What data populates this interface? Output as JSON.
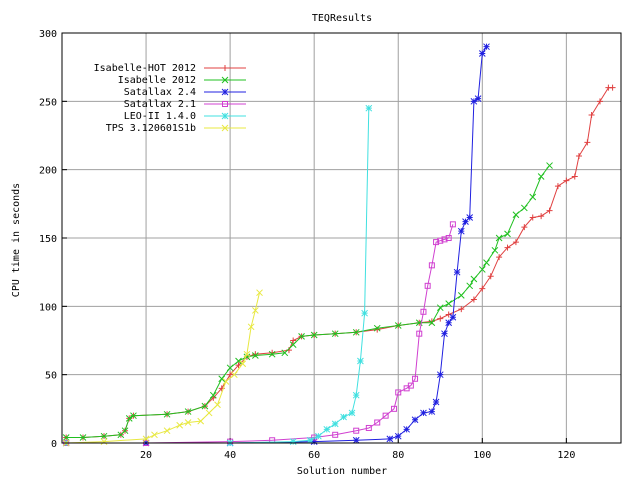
{
  "chart_data": {
    "type": "line",
    "title": "TEQResults",
    "xlabel": "Solution number",
    "ylabel": "CPU time in seconds",
    "xlim": [
      0,
      133
    ],
    "ylim": [
      0,
      300
    ],
    "xticks": [
      20,
      40,
      60,
      80,
      100,
      120
    ],
    "yticks": [
      0,
      50,
      100,
      150,
      200,
      250,
      300
    ],
    "grid": true,
    "legend_position": "top-left",
    "series": [
      {
        "name": "Isabelle-HOT 2012",
        "color": "#e04040",
        "marker": "plus",
        "points": [
          [
            1,
            4
          ],
          [
            5,
            4
          ],
          [
            10,
            5
          ],
          [
            14,
            6
          ],
          [
            15,
            9
          ],
          [
            16,
            18
          ],
          [
            17,
            20
          ],
          [
            25,
            21
          ],
          [
            30,
            23
          ],
          [
            34,
            27
          ],
          [
            36,
            33
          ],
          [
            38,
            40
          ],
          [
            40,
            50
          ],
          [
            42,
            57
          ],
          [
            44,
            63
          ],
          [
            46,
            65
          ],
          [
            50,
            66
          ],
          [
            54,
            68
          ],
          [
            55,
            75
          ],
          [
            57,
            78
          ],
          [
            60,
            79
          ],
          [
            65,
            80
          ],
          [
            70,
            81
          ],
          [
            75,
            83
          ],
          [
            80,
            86
          ],
          [
            85,
            88
          ],
          [
            88,
            89
          ],
          [
            90,
            91
          ],
          [
            92,
            94
          ],
          [
            95,
            98
          ],
          [
            98,
            105
          ],
          [
            100,
            113
          ],
          [
            102,
            122
          ],
          [
            104,
            136
          ],
          [
            106,
            143
          ],
          [
            108,
            147
          ],
          [
            110,
            158
          ],
          [
            112,
            165
          ],
          [
            114,
            166
          ],
          [
            116,
            170
          ],
          [
            118,
            188
          ],
          [
            120,
            192
          ],
          [
            122,
            195
          ],
          [
            123,
            210
          ],
          [
            125,
            220
          ],
          [
            126,
            240
          ],
          [
            128,
            250
          ],
          [
            130,
            260
          ],
          [
            131,
            260
          ]
        ]
      },
      {
        "name": "Isabelle 2012",
        "color": "#20c020",
        "marker": "cross",
        "points": [
          [
            1,
            4
          ],
          [
            5,
            4
          ],
          [
            10,
            5
          ],
          [
            14,
            6
          ],
          [
            15,
            9
          ],
          [
            16,
            18
          ],
          [
            17,
            20
          ],
          [
            25,
            21
          ],
          [
            30,
            23
          ],
          [
            34,
            27
          ],
          [
            36,
            35
          ],
          [
            38,
            47
          ],
          [
            40,
            55
          ],
          [
            42,
            60
          ],
          [
            44,
            63
          ],
          [
            46,
            64
          ],
          [
            50,
            65
          ],
          [
            53,
            66
          ],
          [
            55,
            72
          ],
          [
            57,
            78
          ],
          [
            60,
            79
          ],
          [
            65,
            80
          ],
          [
            70,
            81
          ],
          [
            75,
            84
          ],
          [
            80,
            86
          ],
          [
            85,
            88
          ],
          [
            88,
            88
          ],
          [
            90,
            99
          ],
          [
            92,
            102
          ],
          [
            95,
            108
          ],
          [
            97,
            115
          ],
          [
            98,
            120
          ],
          [
            100,
            127
          ],
          [
            101,
            132
          ],
          [
            103,
            141
          ],
          [
            104,
            150
          ],
          [
            106,
            153
          ],
          [
            108,
            167
          ],
          [
            110,
            172
          ],
          [
            112,
            180
          ],
          [
            114,
            195
          ],
          [
            116,
            203
          ]
        ]
      },
      {
        "name": "Satallax 2.4",
        "color": "#2020e0",
        "marker": "star",
        "points": [
          [
            1,
            0
          ],
          [
            20,
            0
          ],
          [
            40,
            0
          ],
          [
            60,
            1
          ],
          [
            70,
            2
          ],
          [
            78,
            3
          ],
          [
            80,
            5
          ],
          [
            82,
            10
          ],
          [
            84,
            17
          ],
          [
            86,
            22
          ],
          [
            88,
            23
          ],
          [
            89,
            30
          ],
          [
            90,
            50
          ],
          [
            91,
            80
          ],
          [
            92,
            88
          ],
          [
            93,
            92
          ],
          [
            94,
            125
          ],
          [
            95,
            155
          ],
          [
            96,
            162
          ],
          [
            97,
            165
          ],
          [
            98,
            250
          ],
          [
            99,
            252
          ],
          [
            100,
            285
          ],
          [
            101,
            290
          ]
        ]
      },
      {
        "name": "Satallax 2.1",
        "color": "#d040d0",
        "marker": "square",
        "points": [
          [
            1,
            0
          ],
          [
            20,
            0
          ],
          [
            40,
            1
          ],
          [
            50,
            2
          ],
          [
            60,
            4
          ],
          [
            65,
            6
          ],
          [
            70,
            9
          ],
          [
            73,
            11
          ],
          [
            75,
            15
          ],
          [
            77,
            20
          ],
          [
            79,
            25
          ],
          [
            80,
            37
          ],
          [
            82,
            40
          ],
          [
            83,
            42
          ],
          [
            84,
            47
          ],
          [
            85,
            80
          ],
          [
            86,
            96
          ],
          [
            87,
            115
          ],
          [
            88,
            130
          ],
          [
            89,
            147
          ],
          [
            90,
            148
          ],
          [
            91,
            149
          ],
          [
            92,
            150
          ],
          [
            93,
            160
          ]
        ]
      },
      {
        "name": "LEO-II 1.4.0",
        "color": "#40e0e0",
        "marker": "star",
        "points": [
          [
            1,
            0
          ],
          [
            40,
            0
          ],
          [
            55,
            1
          ],
          [
            59,
            2
          ],
          [
            61,
            5
          ],
          [
            63,
            10
          ],
          [
            65,
            14
          ],
          [
            67,
            19
          ],
          [
            69,
            22
          ],
          [
            70,
            35
          ],
          [
            71,
            60
          ],
          [
            72,
            95
          ],
          [
            73,
            245
          ]
        ]
      },
      {
        "name": "TPS 3.120601S1b",
        "color": "#e8e840",
        "marker": "cross",
        "points": [
          [
            1,
            0
          ],
          [
            10,
            1
          ],
          [
            20,
            3
          ],
          [
            22,
            6
          ],
          [
            25,
            9
          ],
          [
            28,
            13
          ],
          [
            30,
            15
          ],
          [
            33,
            16
          ],
          [
            35,
            22
          ],
          [
            37,
            28
          ],
          [
            39,
            45
          ],
          [
            41,
            50
          ],
          [
            43,
            58
          ],
          [
            44,
            65
          ],
          [
            45,
            85
          ],
          [
            46,
            97
          ],
          [
            47,
            110
          ]
        ]
      }
    ]
  }
}
